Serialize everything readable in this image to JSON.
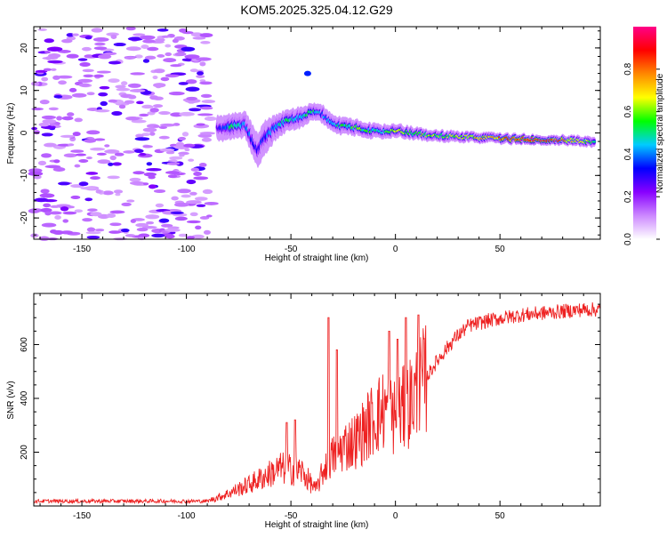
{
  "title": "KOM5.2025.325.04.12.G29",
  "chart_data": [
    {
      "type": "heatmap",
      "title": "KOM5.2025.325.04.12.G29",
      "xlabel": "Height of straight line (km)",
      "ylabel": "Frequency (Hz)",
      "xlim": [
        -173,
        98
      ],
      "ylim": [
        -25,
        25
      ],
      "xticks": [
        -150,
        -100,
        -50,
        0,
        50
      ],
      "yticks": [
        -20,
        -10,
        0,
        10,
        20
      ],
      "colorbar": {
        "label": "Normalized spectral amplitude",
        "range": [
          0,
          1
        ],
        "ticks": [
          "0.0",
          "0.2",
          "0.4",
          "0.6",
          "0.8"
        ],
        "colors": [
          "#ffffff",
          "#cc88ff",
          "#8800ff",
          "#0000ff",
          "#00ccff",
          "#00ff00",
          "#ffff00",
          "#ff8800",
          "#ff0000",
          "#ff0088"
        ]
      },
      "noise_region_x": [
        -173,
        -88
      ],
      "ridge": [
        {
          "x": -85,
          "y": 1,
          "amp": 0.25,
          "width": 3
        },
        {
          "x": -78,
          "y": 1.5,
          "amp": 0.5,
          "width": 3
        },
        {
          "x": -72,
          "y": 2,
          "amp": 0.4,
          "width": 3
        },
        {
          "x": -66,
          "y": -4,
          "amp": 0.3,
          "width": 4
        },
        {
          "x": -62,
          "y": -1,
          "amp": 0.35,
          "width": 4
        },
        {
          "x": -58,
          "y": 1,
          "amp": 0.4,
          "width": 3
        },
        {
          "x": -52,
          "y": 3,
          "amp": 0.5,
          "width": 2.5
        },
        {
          "x": -46,
          "y": 3.5,
          "amp": 0.45,
          "width": 2.5
        },
        {
          "x": -40,
          "y": 5,
          "amp": 0.5,
          "width": 2
        },
        {
          "x": -35,
          "y": 4.5,
          "amp": 0.4,
          "width": 2
        },
        {
          "x": -30,
          "y": 2,
          "amp": 0.45,
          "width": 2
        },
        {
          "x": -24,
          "y": 1.5,
          "amp": 0.5,
          "width": 2
        },
        {
          "x": -18,
          "y": 1.2,
          "amp": 0.55,
          "width": 1.8
        },
        {
          "x": -12,
          "y": 0.5,
          "amp": 0.5,
          "width": 1.8
        },
        {
          "x": -6,
          "y": 0.3,
          "amp": 0.5,
          "width": 1.6
        },
        {
          "x": 0,
          "y": 0.5,
          "amp": 0.6,
          "width": 1.6
        },
        {
          "x": 8,
          "y": 0,
          "amp": 0.55,
          "width": 1.4
        },
        {
          "x": 15,
          "y": -0.5,
          "amp": 0.6,
          "width": 1.3
        },
        {
          "x": 25,
          "y": -0.8,
          "amp": 0.6,
          "width": 1.3
        },
        {
          "x": 35,
          "y": -1,
          "amp": 0.65,
          "width": 1.2
        },
        {
          "x": 45,
          "y": -1.2,
          "amp": 0.7,
          "width": 1.2
        },
        {
          "x": 55,
          "y": -1.4,
          "amp": 0.85,
          "width": 1.2
        },
        {
          "x": 65,
          "y": -1.5,
          "amp": 0.95,
          "width": 1.1
        },
        {
          "x": 75,
          "y": -1.6,
          "amp": 0.9,
          "width": 1.1
        },
        {
          "x": 85,
          "y": -1.8,
          "amp": 0.7,
          "width": 1.1
        },
        {
          "x": 95,
          "y": -2,
          "amp": 0.55,
          "width": 1.2
        }
      ],
      "isolated_blob": {
        "x": -42,
        "y": 14,
        "amp": 0.35
      }
    },
    {
      "type": "line",
      "xlabel": "Height of straight line (km)",
      "ylabel": "SNR (v/v)",
      "xlim": [
        -173,
        98
      ],
      "ylim": [
        0,
        790
      ],
      "xticks": [
        -150,
        -100,
        -50,
        0,
        50
      ],
      "yticks": [
        200,
        400,
        600
      ],
      "color": "#ee2222",
      "trend": [
        {
          "x": -173,
          "y": 18
        },
        {
          "x": -90,
          "y": 18
        },
        {
          "x": -82,
          "y": 40
        },
        {
          "x": -70,
          "y": 80
        },
        {
          "x": -55,
          "y": 140
        },
        {
          "x": -45,
          "y": 130
        },
        {
          "x": -38,
          "y": 60
        },
        {
          "x": -33,
          "y": 160
        },
        {
          "x": -25,
          "y": 220
        },
        {
          "x": -18,
          "y": 250
        },
        {
          "x": -10,
          "y": 330
        },
        {
          "x": -5,
          "y": 360
        },
        {
          "x": 0,
          "y": 330
        },
        {
          "x": 5,
          "y": 370
        },
        {
          "x": 10,
          "y": 420
        },
        {
          "x": 15,
          "y": 480
        },
        {
          "x": 20,
          "y": 540
        },
        {
          "x": 28,
          "y": 620
        },
        {
          "x": 35,
          "y": 670
        },
        {
          "x": 45,
          "y": 690
        },
        {
          "x": 60,
          "y": 710
        },
        {
          "x": 75,
          "y": 720
        },
        {
          "x": 90,
          "y": 730
        },
        {
          "x": 98,
          "y": 730
        }
      ],
      "spikes": [
        {
          "x": -32,
          "y": 700
        },
        {
          "x": -28,
          "y": 580
        },
        {
          "x": 5,
          "y": 700
        },
        {
          "x": 11,
          "y": 710
        },
        {
          "x": -3,
          "y": 650
        },
        {
          "x": 1,
          "y": 620
        },
        {
          "x": -48,
          "y": 320
        },
        {
          "x": -52,
          "y": 310
        }
      ]
    }
  ]
}
